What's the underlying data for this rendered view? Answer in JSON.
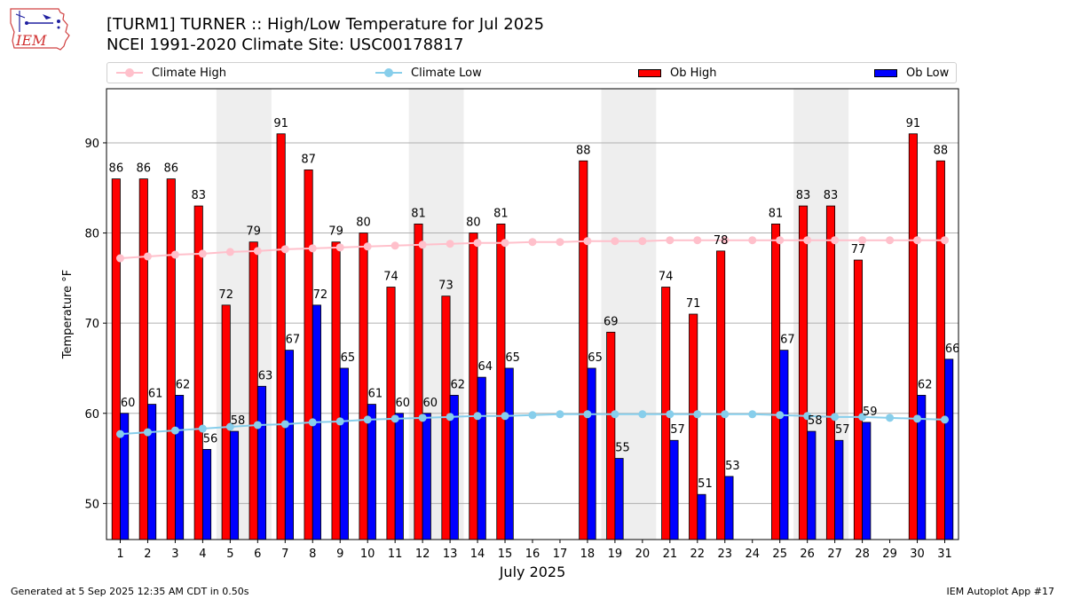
{
  "header": {
    "logo_text": "IEM",
    "title_line1": "[TURM1] TURNER :: High/Low Temperature for Jul 2025",
    "title_line2": "NCEI 1991-2020 Climate Site: USC00178817"
  },
  "footer": {
    "left": "Generated at 5 Sep 2025 12:35 AM CDT in 0.50s",
    "right": "IEM Autoplot App #17"
  },
  "colors": {
    "climate_high": "#ffc0cb",
    "climate_low": "#87ceeb",
    "ob_high": "#ff0000",
    "ob_low": "#0000ff",
    "weekend_shade": "#eeeeee"
  },
  "chart_data": {
    "type": "bar",
    "xlabel": "July 2025",
    "ylabel": "Temperature °F",
    "ylim": [
      46,
      96
    ],
    "yticks": [
      50,
      60,
      70,
      80,
      90
    ],
    "grid": "y",
    "legend_position": "top",
    "categories": [
      "1",
      "2",
      "3",
      "4",
      "5",
      "6",
      "7",
      "8",
      "9",
      "10",
      "11",
      "12",
      "13",
      "14",
      "15",
      "16",
      "17",
      "18",
      "19",
      "20",
      "21",
      "22",
      "23",
      "24",
      "25",
      "26",
      "27",
      "28",
      "29",
      "30",
      "31"
    ],
    "shaded_days": [
      [
        5,
        6
      ],
      [
        12,
        13
      ],
      [
        19,
        20
      ],
      [
        26,
        27
      ]
    ],
    "series": [
      {
        "name": "Climate High",
        "kind": "line",
        "color": "#ffc0cb",
        "values": [
          77.2,
          77.4,
          77.6,
          77.7,
          77.9,
          78.0,
          78.2,
          78.3,
          78.4,
          78.5,
          78.6,
          78.7,
          78.8,
          78.9,
          78.9,
          79.0,
          79.0,
          79.1,
          79.1,
          79.1,
          79.2,
          79.2,
          79.2,
          79.2,
          79.2,
          79.2,
          79.2,
          79.2,
          79.2,
          79.2,
          79.2
        ]
      },
      {
        "name": "Climate Low",
        "kind": "line",
        "color": "#87ceeb",
        "values": [
          57.7,
          57.9,
          58.1,
          58.3,
          58.5,
          58.7,
          58.8,
          59.0,
          59.1,
          59.3,
          59.4,
          59.5,
          59.6,
          59.7,
          59.7,
          59.8,
          59.9,
          59.9,
          59.9,
          59.9,
          59.9,
          59.9,
          59.9,
          59.9,
          59.8,
          59.7,
          59.6,
          59.6,
          59.5,
          59.4,
          59.3
        ]
      },
      {
        "name": "Ob High",
        "kind": "bar",
        "color": "#ff0000",
        "values": [
          86,
          86,
          86,
          83,
          72,
          79,
          91,
          87,
          79,
          80,
          74,
          81,
          73,
          80,
          81,
          null,
          null,
          88,
          69,
          null,
          74,
          71,
          78,
          null,
          81,
          83,
          83,
          77,
          null,
          91,
          88
        ]
      },
      {
        "name": "Ob Low",
        "kind": "bar",
        "color": "#0000ff",
        "values": [
          60,
          61,
          62,
          56,
          58,
          63,
          67,
          72,
          65,
          61,
          60,
          60,
          62,
          64,
          65,
          null,
          null,
          65,
          55,
          null,
          57,
          51,
          53,
          null,
          67,
          58,
          57,
          59,
          null,
          62,
          66
        ]
      }
    ]
  }
}
